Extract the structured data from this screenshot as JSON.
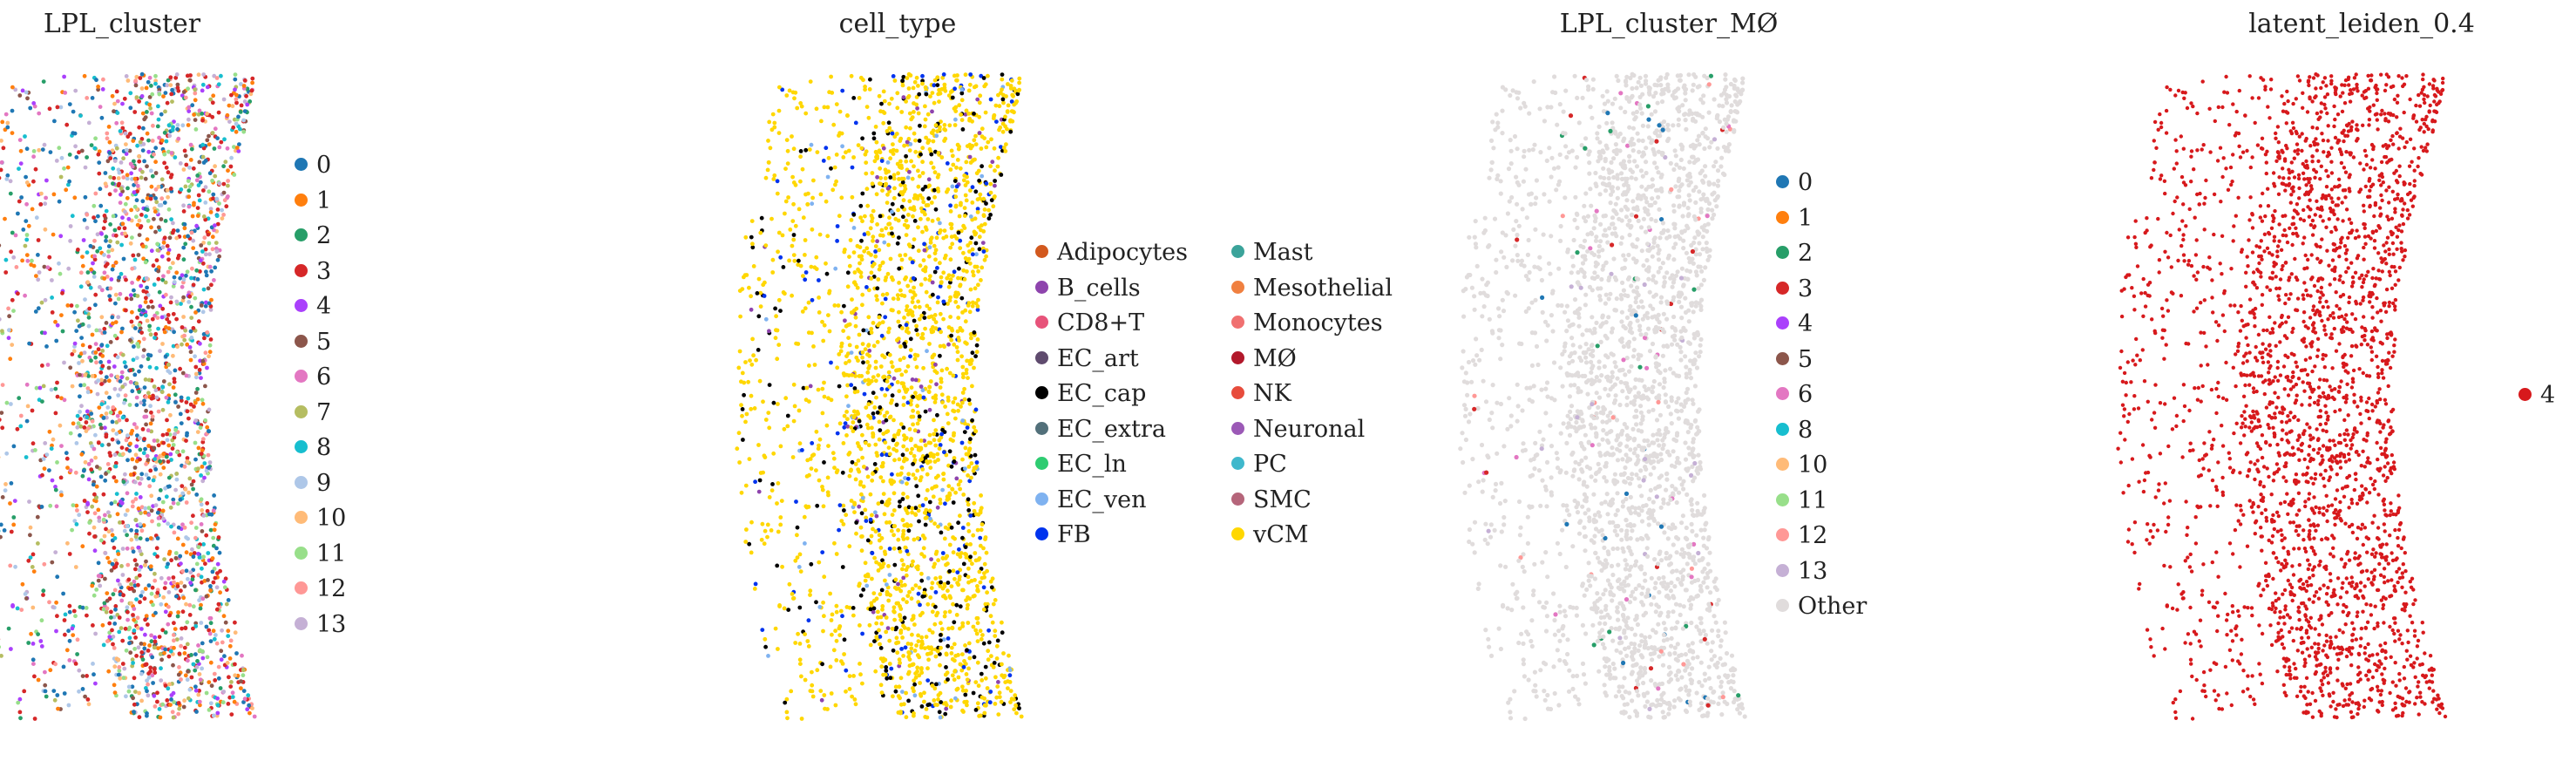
{
  "chart_data": [
    {
      "type": "scatter",
      "title": "LPL_cluster",
      "categories": [
        "0",
        "1",
        "2",
        "3",
        "4",
        "5",
        "6",
        "7",
        "8",
        "9",
        "10",
        "11",
        "12",
        "13"
      ],
      "colors": [
        "#1f77b4",
        "#ff7f0e",
        "#279e68",
        "#d62728",
        "#aa40fc",
        "#8c564b",
        "#e377c2",
        "#b5bd61",
        "#17becf",
        "#aec7e8",
        "#ffbb78",
        "#98df8a",
        "#ff9896",
        "#c5b0d5"
      ],
      "grid": false,
      "legend_position": "right"
    },
    {
      "type": "scatter",
      "title": "cell_type",
      "categories": [
        "Adipocytes",
        "B_cells",
        "CD8+T",
        "EC_art",
        "EC_cap",
        "EC_extra",
        "EC_ln",
        "EC_ven",
        "FB",
        "Mast",
        "Mesothelial",
        "Monocytes",
        "MØ",
        "NK",
        "Neuronal",
        "PC",
        "SMC",
        "vCM"
      ],
      "colors": [
        "#d2591e",
        "#8e44ad",
        "#e7537a",
        "#5f4b6e",
        "#000000",
        "#52707a",
        "#2ecc71",
        "#7fb2f0",
        "#0033ee",
        "#3ba39a",
        "#f08040",
        "#f07070",
        "#b2182b",
        "#e74c3c",
        "#9b59b6",
        "#3fb8cc",
        "#b5657a",
        "#ffd700"
      ],
      "grid": false,
      "legend_position": "right"
    },
    {
      "type": "scatter",
      "title": "LPL_cluster_MØ",
      "categories": [
        "0",
        "1",
        "2",
        "3",
        "4",
        "5",
        "6",
        "8",
        "10",
        "11",
        "12",
        "13",
        "Other"
      ],
      "colors": [
        "#1f77b4",
        "#ff7f0e",
        "#279e68",
        "#d62728",
        "#aa40fc",
        "#8c564b",
        "#e377c2",
        "#17becf",
        "#ffbb78",
        "#98df8a",
        "#ff9896",
        "#c5b0d5",
        "#e0dcdc"
      ],
      "grid": false,
      "legend_position": "right"
    },
    {
      "type": "scatter",
      "title": "latent_leiden_0.4",
      "categories": [
        "4"
      ],
      "colors": [
        "#d7191c"
      ],
      "grid": false,
      "legend_position": "right"
    }
  ]
}
